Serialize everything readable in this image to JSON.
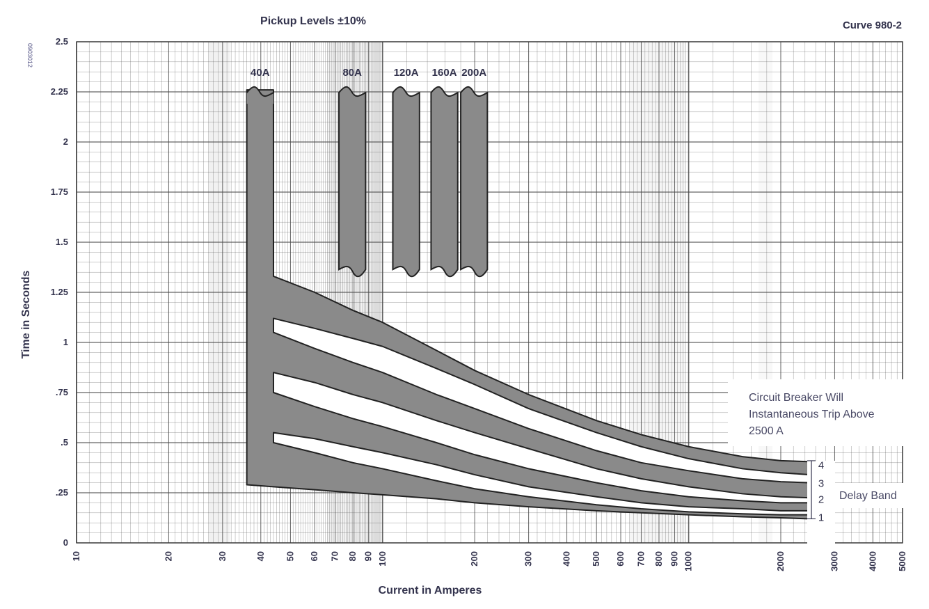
{
  "chart_data": {
    "type": "line",
    "title": "Pickup Levels ±10%",
    "curve_id": "Curve 980-2",
    "side_code": "0903012",
    "xlabel": "Current in Amperes",
    "ylabel": "Time in Seconds",
    "x_scale": "log",
    "xlim": [
      10,
      5000
    ],
    "ylim": [
      0,
      2.5
    ],
    "x_tick_labels": [
      {
        "value": 10,
        "label": "10"
      },
      {
        "value": 20,
        "label": "20"
      },
      {
        "value": 30,
        "label": "30"
      },
      {
        "value": 40,
        "label": "40"
      },
      {
        "value": 50,
        "label": "50"
      },
      {
        "value": 60,
        "label": "60"
      },
      {
        "value": 70,
        "label": "70"
      },
      {
        "value": 80,
        "label": "80"
      },
      {
        "value": 90,
        "label": "90"
      },
      {
        "value": 100,
        "label": "100"
      },
      {
        "value": 200,
        "label": "200"
      },
      {
        "value": 300,
        "label": "300"
      },
      {
        "value": 400,
        "label": "400"
      },
      {
        "value": 500,
        "label": "500"
      },
      {
        "value": 600,
        "label": "600"
      },
      {
        "value": 700,
        "label": "700"
      },
      {
        "value": 800,
        "label": "800"
      },
      {
        "value": 900,
        "label": "900"
      },
      {
        "value": 1000,
        "label": "1000"
      },
      {
        "value": 2000,
        "label": "2000"
      },
      {
        "value": 3000,
        "label": "3000"
      },
      {
        "value": 4000,
        "label": "4000"
      },
      {
        "value": 5000,
        "label": "5000"
      }
    ],
    "y_tick_labels": [
      {
        "value": 0,
        "label": "0"
      },
      {
        "value": 0.25,
        "label": ".25"
      },
      {
        "value": 0.5,
        "label": ".5"
      },
      {
        "value": 0.75,
        "label": ".75"
      },
      {
        "value": 1.0,
        "label": "1"
      },
      {
        "value": 1.25,
        "label": "1.25"
      },
      {
        "value": 1.5,
        "label": "1.5"
      },
      {
        "value": 1.75,
        "label": "1.75"
      },
      {
        "value": 2.0,
        "label": "2"
      },
      {
        "value": 2.25,
        "label": "2.25"
      },
      {
        "value": 2.5,
        "label": "2.5"
      }
    ],
    "pickup_levels": [
      {
        "label": "40A",
        "x_from": 36,
        "x_to": 44,
        "y_from": 1.35,
        "y_to": 2.26
      },
      {
        "label": "80A",
        "x_from": 72,
        "x_to": 88,
        "y_from": 1.35,
        "y_to": 2.26
      },
      {
        "label": "120A",
        "x_from": 108,
        "x_to": 132,
        "y_from": 1.35,
        "y_to": 2.26
      },
      {
        "label": "160A",
        "x_from": 144,
        "x_to": 176,
        "y_from": 1.35,
        "y_to": 2.26
      },
      {
        "label": "200A",
        "x_from": 180,
        "x_to": 220,
        "y_from": 1.35,
        "y_to": 2.26
      }
    ],
    "envelope": {
      "x": [
        36,
        44,
        60,
        80,
        100,
        150,
        200,
        300,
        500,
        700,
        1000,
        1500,
        2000,
        2500
      ],
      "upper": [
        1.35,
        1.33,
        1.25,
        1.16,
        1.1,
        0.96,
        0.86,
        0.74,
        0.61,
        0.54,
        0.48,
        0.43,
        0.41,
        0.405
      ],
      "lower": [
        0.29,
        0.28,
        0.265,
        0.25,
        0.24,
        0.22,
        0.2,
        0.18,
        0.16,
        0.15,
        0.14,
        0.13,
        0.125,
        0.12
      ]
    },
    "gaps": [
      {
        "x": [
          44,
          60,
          80,
          100,
          150,
          200,
          300,
          500,
          700,
          1000,
          1500,
          2000,
          2500
        ],
        "upper": [
          1.12,
          1.07,
          1.02,
          0.98,
          0.87,
          0.79,
          0.67,
          0.55,
          0.48,
          0.42,
          0.37,
          0.35,
          0.34
        ],
        "lower": [
          1.05,
          0.97,
          0.9,
          0.85,
          0.74,
          0.67,
          0.57,
          0.46,
          0.4,
          0.36,
          0.32,
          0.305,
          0.3
        ]
      },
      {
        "x": [
          44,
          60,
          80,
          100,
          150,
          200,
          300,
          500,
          700,
          1000,
          1500,
          2000,
          2500
        ],
        "upper": [
          0.85,
          0.8,
          0.74,
          0.7,
          0.61,
          0.55,
          0.47,
          0.37,
          0.32,
          0.28,
          0.245,
          0.23,
          0.225
        ],
        "lower": [
          0.75,
          0.68,
          0.62,
          0.58,
          0.5,
          0.44,
          0.37,
          0.3,
          0.26,
          0.23,
          0.21,
          0.2,
          0.2
        ]
      },
      {
        "x": [
          44,
          60,
          80,
          100,
          150,
          200,
          300,
          500,
          700,
          1000,
          1500,
          2000,
          2500
        ],
        "upper": [
          0.55,
          0.52,
          0.48,
          0.45,
          0.39,
          0.34,
          0.28,
          0.23,
          0.2,
          0.18,
          0.17,
          0.16,
          0.16
        ],
        "lower": [
          0.5,
          0.45,
          0.4,
          0.37,
          0.31,
          0.27,
          0.23,
          0.19,
          0.17,
          0.155,
          0.145,
          0.14,
          0.14
        ]
      }
    ],
    "delay_band": {
      "label": "Delay Band",
      "numbers": [
        {
          "label": "4",
          "y": 0.39
        },
        {
          "label": "3",
          "y": 0.3
        },
        {
          "label": "2",
          "y": 0.22
        },
        {
          "label": "1",
          "y": 0.13
        }
      ]
    },
    "annotation_lines": [
      "Circuit Breaker Will",
      "Instantaneous Trip Above",
      "2500 A"
    ],
    "instantaneous_trip_current": 2500,
    "grid": true,
    "colors": {
      "band_fill": "#8a8a8a",
      "band_stroke": "#222222",
      "grid": "#555555",
      "text": "#33334d"
    }
  }
}
